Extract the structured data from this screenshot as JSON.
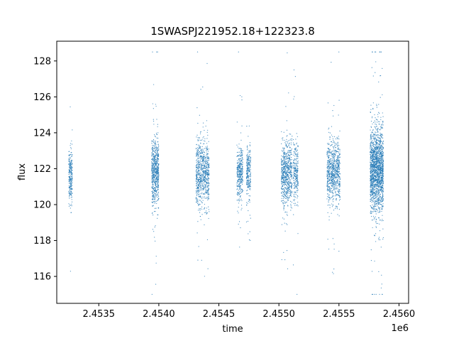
{
  "chart_data": {
    "type": "scatter",
    "title": "1SWASPJ221952.18+122323.8",
    "xlabel": "time",
    "ylabel": "flux",
    "x_offset_label": "1e6",
    "xlim": [
      2453150,
      2456080
    ],
    "ylim": [
      114.5,
      129.1
    ],
    "x_ticks": [
      {
        "value": 2453500,
        "label": "2.4535"
      },
      {
        "value": 2454000,
        "label": "2.4540"
      },
      {
        "value": 2454500,
        "label": "2.4545"
      },
      {
        "value": 2455000,
        "label": "2.4550"
      },
      {
        "value": 2455500,
        "label": "2.4555"
      },
      {
        "value": 2456000,
        "label": "2.4560"
      }
    ],
    "y_ticks": [
      {
        "value": 116,
        "label": "116"
      },
      {
        "value": 118,
        "label": "118"
      },
      {
        "value": 120,
        "label": "120"
      },
      {
        "value": 122,
        "label": "122"
      },
      {
        "value": 124,
        "label": "124"
      },
      {
        "value": 126,
        "label": "126"
      },
      {
        "value": 128,
        "label": "128"
      }
    ],
    "grid": false,
    "legend": "none",
    "marker_color": "#1f77b4",
    "series": [
      {
        "clusters": [
          {
            "x_start": 2453250,
            "x_end": 2453280,
            "y_center": 121.6,
            "y_spread": 1.3,
            "n_points": 250
          },
          {
            "x_start": 2453940,
            "x_end": 2454000,
            "y_center": 121.8,
            "y_spread": 1.5,
            "n_points": 650
          },
          {
            "x_start": 2454310,
            "x_end": 2454420,
            "y_center": 121.7,
            "y_spread": 1.5,
            "n_points": 800
          },
          {
            "x_start": 2454650,
            "x_end": 2454700,
            "y_center": 121.8,
            "y_spread": 1.2,
            "n_points": 350
          },
          {
            "x_start": 2454730,
            "x_end": 2454765,
            "y_center": 121.8,
            "y_spread": 1.2,
            "n_points": 250
          },
          {
            "x_start": 2455020,
            "x_end": 2455110,
            "y_center": 121.7,
            "y_spread": 1.5,
            "n_points": 700
          },
          {
            "x_start": 2455120,
            "x_end": 2455160,
            "y_center": 121.8,
            "y_spread": 1.3,
            "n_points": 250
          },
          {
            "x_start": 2455400,
            "x_end": 2455510,
            "y_center": 121.8,
            "y_spread": 1.4,
            "n_points": 800
          },
          {
            "x_start": 2455760,
            "x_end": 2455870,
            "y_center": 121.9,
            "y_spread": 1.9,
            "n_points": 1800
          }
        ]
      }
    ]
  }
}
